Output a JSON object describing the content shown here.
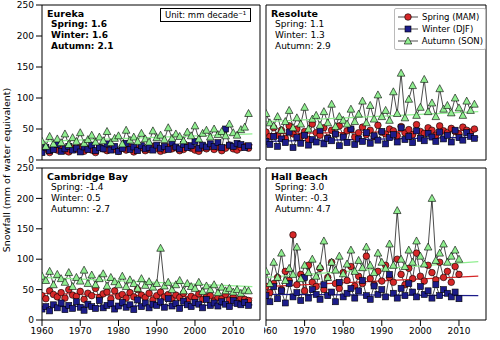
{
  "ylabel": "Snowfall (mm of water equivalent)",
  "note": "Unit: mm decade⁻¹",
  "chart_data": [
    {
      "type": "line",
      "title": "Eureka",
      "annotations": [
        "Spring: 1.6",
        "Winter: 1.6",
        "Autumn: 2.1"
      ],
      "tick_labels": "y",
      "xlim": [
        1960,
        2017
      ],
      "xticks": [
        1960,
        1970,
        1980,
        1990,
        2000,
        2010
      ],
      "ylim": [
        0,
        250
      ],
      "yticks": [
        0,
        50,
        100,
        150,
        200,
        250
      ],
      "x": [
        1960,
        1961,
        1962,
        1963,
        1964,
        1965,
        1966,
        1967,
        1968,
        1969,
        1970,
        1971,
        1972,
        1973,
        1974,
        1975,
        1976,
        1977,
        1978,
        1979,
        1980,
        1981,
        1982,
        1983,
        1984,
        1985,
        1986,
        1987,
        1988,
        1989,
        1990,
        1991,
        1992,
        1993,
        1994,
        1995,
        1996,
        1997,
        1998,
        1999,
        2000,
        2001,
        2002,
        2003,
        2004,
        2005,
        2006,
        2007,
        2008,
        2009,
        2010,
        2011,
        2012,
        2013,
        2014
      ],
      "series": [
        {
          "name": "Spring (MAM)",
          "color": "#d62728",
          "marker": "circle",
          "values": [
            14,
            18,
            12,
            20,
            16,
            22,
            15,
            13,
            19,
            17,
            21,
            14,
            18,
            16,
            12,
            20,
            18,
            15,
            22,
            17,
            14,
            19,
            16,
            21,
            13,
            18,
            20,
            15,
            17,
            22,
            19,
            14,
            16,
            21,
            18,
            20,
            15,
            17,
            23,
            19,
            16,
            14,
            20,
            18,
            22,
            17,
            21,
            15,
            19,
            24,
            18,
            16,
            20,
            22,
            19
          ],
          "trend": {
            "x": [
              1960,
              2015
            ],
            "values": [
              15,
              24
            ]
          }
        },
        {
          "name": "Winter (DJF)",
          "color": "#1c1c8a",
          "marker": "square",
          "values": [
            12,
            20,
            15,
            17,
            25,
            14,
            18,
            22,
            16,
            19,
            13,
            21,
            17,
            24,
            15,
            20,
            18,
            26,
            16,
            22,
            14,
            19,
            27,
            17,
            21,
            15,
            23,
            18,
            20,
            16,
            24,
            19,
            22,
            17,
            28,
            21,
            18,
            25,
            20,
            23,
            30,
            19,
            24,
            21,
            26,
            22,
            28,
            20,
            50,
            24,
            22,
            27,
            25,
            20,
            23
          ],
          "trend": {
            "x": [
              1960,
              2015
            ],
            "values": [
              16,
              25
            ]
          }
        },
        {
          "name": "Autumn (SON)",
          "color": "#90ee90",
          "marker": "triangle",
          "values": [
            30,
            22,
            38,
            26,
            34,
            28,
            42,
            25,
            36,
            30,
            44,
            27,
            33,
            40,
            29,
            37,
            31,
            46,
            28,
            35,
            39,
            26,
            48,
            32,
            37,
            30,
            43,
            34,
            29,
            47,
            36,
            40,
            33,
            52,
            35,
            42,
            38,
            31,
            45,
            39,
            55,
            34,
            43,
            48,
            37,
            50,
            41,
            46,
            39,
            58,
            44,
            40,
            49,
            53,
            75
          ],
          "trend": {
            "x": [
              1960,
              2015
            ],
            "values": [
              30,
              42
            ]
          }
        }
      ]
    },
    {
      "type": "line",
      "title": "Resolute",
      "annotations": [
        "Spring: 1.1",
        "Winter: 1.3",
        "Autumn: 2.9"
      ],
      "tick_labels": false,
      "legend": "upper right",
      "xlim": [
        1960,
        2017
      ],
      "xticks": [
        1960,
        1970,
        1980,
        1990,
        2000,
        2010
      ],
      "ylim": [
        0,
        250
      ],
      "yticks": [
        0,
        50,
        100,
        150,
        200,
        250
      ],
      "x": [
        1960,
        1961,
        1962,
        1963,
        1964,
        1965,
        1966,
        1967,
        1968,
        1969,
        1970,
        1971,
        1972,
        1973,
        1974,
        1975,
        1976,
        1977,
        1978,
        1979,
        1980,
        1981,
        1982,
        1983,
        1984,
        1985,
        1986,
        1987,
        1988,
        1989,
        1990,
        1991,
        1992,
        1993,
        1994,
        1995,
        1996,
        1997,
        1998,
        1999,
        2000,
        2001,
        2002,
        2003,
        2004,
        2005,
        2006,
        2007,
        2008,
        2009,
        2010,
        2011,
        2012,
        2013,
        2014
      ],
      "series": [
        {
          "name": "Spring (MAM)",
          "color": "#d62728",
          "marker": "circle",
          "values": [
            45,
            38,
            52,
            40,
            48,
            35,
            55,
            42,
            50,
            38,
            46,
            33,
            58,
            44,
            40,
            52,
            36,
            48,
            42,
            55,
            39,
            47,
            50,
            37,
            44,
            53,
            41,
            48,
            38,
            56,
            45,
            42,
            50,
            47,
            39,
            54,
            44,
            49,
            41,
            57,
            46,
            43,
            52,
            48,
            40,
            55,
            47,
            44,
            51,
            46,
            42,
            53,
            48,
            45,
            50
          ],
          "trend": {
            "x": [
              1960,
              2015
            ],
            "values": [
              42,
              48
            ]
          }
        },
        {
          "name": "Winter (DJF)",
          "color": "#1c1c8a",
          "marker": "square",
          "values": [
            30,
            25,
            38,
            22,
            34,
            28,
            45,
            20,
            36,
            27,
            40,
            24,
            33,
            29,
            48,
            26,
            35,
            31,
            42,
            23,
            37,
            28,
            50,
            25,
            34,
            30,
            44,
            27,
            39,
            32,
            46,
            26,
            36,
            41,
            29,
            52,
            33,
            38,
            28,
            47,
            35,
            31,
            43,
            37,
            30,
            45,
            34,
            40,
            29,
            48,
            36,
            32,
            44,
            38,
            35
          ],
          "trend": {
            "x": [
              1960,
              2015
            ],
            "values": [
              30,
              37
            ]
          }
        },
        {
          "name": "Autumn (SON)",
          "color": "#90ee90",
          "marker": "triangle",
          "values": [
            75,
            60,
            55,
            70,
            48,
            62,
            80,
            52,
            68,
            58,
            85,
            50,
            66,
            72,
            56,
            78,
            60,
            90,
            54,
            70,
            64,
            58,
            82,
            62,
            74,
            95,
            60,
            88,
            66,
            105,
            70,
            80,
            64,
            110,
            75,
            140,
            68,
            98,
            120,
            72,
            85,
            130,
            78,
            92,
            70,
            115,
            82,
            88,
            76,
            100,
            84,
            72,
            95,
            80,
            90
          ],
          "trend": {
            "x": [
              1960,
              2015
            ],
            "values": [
              62,
              78
            ]
          }
        }
      ]
    },
    {
      "type": "line",
      "title": "Cambridge Bay",
      "annotations": [
        "Spring: -1.4",
        "Winter: 0.5",
        "Autumn: -2.7"
      ],
      "tick_labels": true,
      "xlim": [
        1960,
        2017
      ],
      "xticks": [
        1960,
        1970,
        1980,
        1990,
        2000,
        2010
      ],
      "ylim": [
        0,
        250
      ],
      "yticks": [
        0,
        50,
        100,
        150,
        200,
        250
      ],
      "x": [
        1960,
        1961,
        1962,
        1963,
        1964,
        1965,
        1966,
        1967,
        1968,
        1969,
        1970,
        1971,
        1972,
        1973,
        1974,
        1975,
        1976,
        1977,
        1978,
        1979,
        1980,
        1981,
        1982,
        1983,
        1984,
        1985,
        1986,
        1987,
        1988,
        1989,
        1990,
        1991,
        1992,
        1993,
        1994,
        1995,
        1996,
        1997,
        1998,
        1999,
        2000,
        2001,
        2002,
        2003,
        2004,
        2005,
        2006,
        2007,
        2008,
        2009,
        2010,
        2011,
        2012,
        2013,
        2014
      ],
      "series": [
        {
          "name": "Spring (MAM)",
          "color": "#d62728",
          "marker": "circle",
          "values": [
            40,
            35,
            48,
            42,
            38,
            45,
            36,
            50,
            41,
            39,
            47,
            34,
            44,
            40,
            52,
            37,
            43,
            46,
            35,
            48,
            39,
            42,
            36,
            45,
            38,
            50,
            41,
            37,
            44,
            33,
            40,
            46,
            38,
            42,
            35,
            41,
            37,
            44,
            32,
            39,
            36,
            43,
            34,
            38,
            40,
            31,
            37,
            35,
            42,
            33,
            38,
            30,
            36,
            34,
            32
          ],
          "trend": {
            "x": [
              1960,
              2015
            ],
            "values": [
              44,
              36
            ]
          }
        },
        {
          "name": "Winter (DJF)",
          "color": "#1c1c8a",
          "marker": "square",
          "values": [
            18,
            22,
            15,
            25,
            20,
            28,
            17,
            24,
            19,
            30,
            21,
            16,
            26,
            22,
            19,
            32,
            20,
            24,
            27,
            18,
            23,
            29,
            21,
            25,
            17,
            33,
            22,
            28,
            20,
            26,
            24,
            30,
            21,
            35,
            23,
            27,
            19,
            31,
            25,
            22,
            29,
            26,
            20,
            34,
            24,
            28,
            23,
            30,
            26,
            22,
            32,
            27,
            25,
            29,
            24
          ],
          "trend": {
            "x": [
              1960,
              2015
            ],
            "values": [
              22,
              25
            ]
          }
        },
        {
          "name": "Autumn (SON)",
          "color": "#90ee90",
          "marker": "triangle",
          "values": [
            72,
            65,
            80,
            58,
            75,
            68,
            62,
            78,
            55,
            70,
            64,
            82,
            60,
            74,
            58,
            68,
            76,
            56,
            70,
            63,
            58,
            72,
            55,
            66,
            60,
            52,
            68,
            57,
            63,
            54,
            60,
            118,
            56,
            62,
            50,
            58,
            65,
            48,
            60,
            55,
            52,
            62,
            47,
            56,
            50,
            58,
            45,
            54,
            48,
            52,
            46,
            50,
            44,
            49,
            48
          ],
          "trend": {
            "x": [
              1960,
              2015
            ],
            "values": [
              70,
              55
            ]
          }
        }
      ]
    },
    {
      "type": "line",
      "title": "Hall Beach",
      "annotations": [
        "Spring: 3.0",
        "Winter: -0.3",
        "Autumn: 4.7"
      ],
      "tick_labels": "x",
      "xlim": [
        1960,
        2017
      ],
      "xticks": [
        1960,
        1970,
        1980,
        1990,
        2000,
        2010
      ],
      "ylim": [
        0,
        250
      ],
      "yticks": [
        0,
        50,
        100,
        150,
        200,
        250
      ],
      "x": [
        1960,
        1961,
        1962,
        1963,
        1964,
        1965,
        1966,
        1967,
        1968,
        1969,
        1970,
        1971,
        1972,
        1973,
        1974,
        1975,
        1976,
        1977,
        1978,
        1979,
        1980,
        1981,
        1982,
        1983,
        1984,
        1985,
        1986,
        1987,
        1988,
        1989,
        1990,
        1991,
        1992,
        1993,
        1994,
        1995,
        1996,
        1997,
        1998,
        1999,
        2000,
        2001,
        2002,
        2003,
        2004,
        2005,
        2006,
        2007,
        2008,
        2009,
        2010
      ],
      "series": [
        {
          "name": "Spring (MAM)",
          "color": "#d62728",
          "marker": "circle",
          "values": [
            55,
            45,
            60,
            70,
            50,
            80,
            65,
            140,
            58,
            75,
            48,
            90,
            62,
            55,
            85,
            50,
            70,
            95,
            60,
            52,
            78,
            65,
            88,
            56,
            72,
            60,
            105,
            68,
            58,
            80,
            64,
            90,
            70,
            62,
            100,
            75,
            58,
            85,
            68,
            110,
            72,
            64,
            90,
            78,
            66,
            95,
            70,
            80,
            62,
            88,
            75
          ],
          "trend": {
            "x": [
              1960,
              2015
            ],
            "values": [
              55,
              72
            ]
          }
        },
        {
          "name": "Winter (DJF)",
          "color": "#1c1c8a",
          "marker": "square",
          "values": [
            40,
            30,
            55,
            35,
            48,
            28,
            60,
            38,
            45,
            32,
            70,
            36,
            50,
            42,
            34,
            58,
            40,
            46,
            30,
            62,
            38,
            44,
            52,
            36,
            48,
            65,
            40,
            34,
            56,
            42,
            50,
            38,
            75,
            44,
            36,
            52,
            40,
            60,
            46,
            38,
            55,
            42,
            48,
            36,
            58,
            40,
            50,
            44,
            38,
            46,
            35
          ],
          "trend": {
            "x": [
              1960,
              2015
            ],
            "values": [
              42,
              40
            ]
          }
        },
        {
          "name": "Autumn (SON)",
          "color": "#90ee90",
          "marker": "triangle",
          "values": [
            80,
            60,
            95,
            70,
            110,
            65,
            85,
            75,
            120,
            68,
            90,
            78,
            100,
            72,
            88,
            130,
            70,
            95,
            82,
            105,
            76,
            92,
            115,
            80,
            98,
            86,
            120,
            90,
            78,
            110,
            95,
            85,
            125,
            90,
            180,
            100,
            88,
            115,
            95,
            130,
            105,
            92,
            120,
            200,
            98,
            110,
            125,
            95,
            105,
            115,
            100
          ],
          "trend": {
            "x": [
              1960,
              2015
            ],
            "values": [
              70,
              96
            ]
          }
        }
      ]
    }
  ]
}
